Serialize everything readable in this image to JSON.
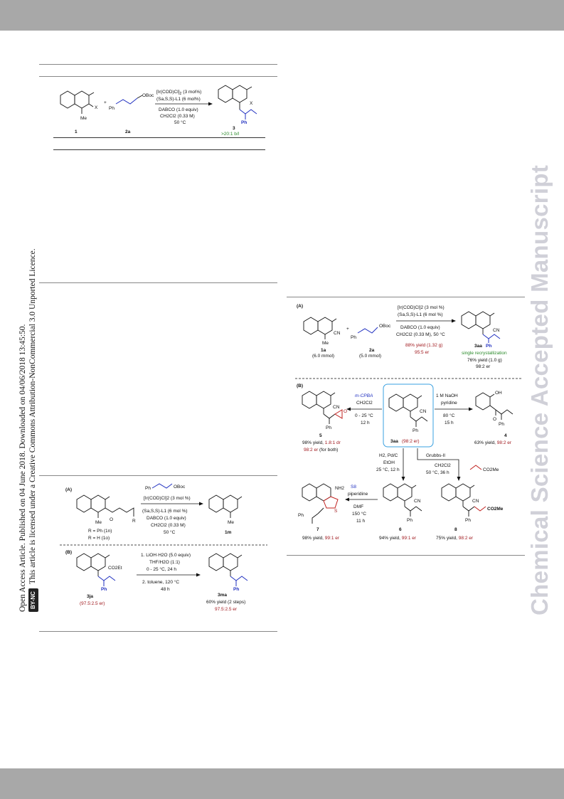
{
  "side_notice": {
    "line1": "Open Access Article. Published on 04 June 2018. Downloaded on 04/06/2018 13:45:50.",
    "cc_badge": "BY-NC",
    "line2": "This article is licensed under a Creative Commons Attribution-NonCommercial 3.0 Unported Licence."
  },
  "watermark": "Chemical Science Accepted Manuscript",
  "table_scheme": {
    "reagent1": "[Ir(COD)Cl]",
    "reagent1_sub": "2",
    "reagent1_tail": "(3 mol%)",
    "reagent2": "(Sa,S,S)-L1 (6 mol%)",
    "reagent3": "DABCO (1.0 equiv)",
    "reagent4": "CH2Cl2 (0.33 M)",
    "reagent5": "50 °C",
    "cmpd1": "1",
    "cmpd2a": "2a",
    "cmpd3": "3",
    "selectivity": ">20:1 b/l",
    "sub_me": "Me",
    "sub_x": "X",
    "sub_x2": "X",
    "sub_ph": "Ph",
    "sub_ph2": "Ph",
    "sub_oboc": "OBoc",
    "plus": "+"
  },
  "scheme_right": {
    "partA": "(A)",
    "partB": "(B)",
    "a_cmpd1a": "1a",
    "a_cmpd1a_amt": "(6.0 mmol)",
    "a_cmpd2a": "2a",
    "a_cmpd2a_amt": "(5.0 mmol)",
    "a_r1": "[Ir(COD)Cl]2 (3 mol %)",
    "a_r2": "(Sa,S,S)-L1 (6 mol %)",
    "a_r3": "DABCO (1.0 equiv)",
    "a_r4": "CH2Cl2 (0.33 M), 50 °C",
    "a_yield": "88% yield (1.32 g)",
    "a_er": "95:5 er",
    "a_product": "3aa",
    "a_recryst": "single recrystallization",
    "a_recryst_yield": "76% yield (1.0 g)",
    "a_recryst_er": "98:2 er",
    "a_me": "Me",
    "a_cn": "CN",
    "a_cn2": "CN",
    "a_ph": "Ph",
    "a_ph2": "Ph",
    "a_oboc": "OBoc",
    "plus": "+",
    "center_label": "3aa",
    "center_er": "(98:2 er)",
    "center_cn": "CN",
    "center_ph": "Ph",
    "mcpba": "m-CPBA",
    "mcpba_solv": "CH2Cl2",
    "mcpba_cond1": "0 - 25 °C",
    "mcpba_cond2": "12 h",
    "p5": "5",
    "p5_yield": "98% yield, ",
    "p5_dr": "1.8:1 dr",
    "p5_er": "98:2 er",
    "p5_er_tail": " (for both)",
    "p5_cn": "CN",
    "p5_o": "O",
    "p5_ph": "Ph",
    "naoh": "1 M NaOH",
    "naoh_solv": "pyridine",
    "naoh_cond1": "80 °C",
    "naoh_cond2": "15 h",
    "p4": "4",
    "p4_yield": "63% yield, ",
    "p4_er": "98:2 er",
    "p4_oh": "OH",
    "p4_o": "O",
    "p4_ph": "Ph",
    "h2": "H2, Pd/C",
    "h2_solv": "EtOH",
    "h2_cond": "25 °C, 12 h",
    "grubbs": "Grubbs-II",
    "grubbs_solv": "CH2Cl2",
    "grubbs_cond": "50 °C, 36 h",
    "acrylate": "CO2Me",
    "s8": "S8",
    "s8_base": "piperidine",
    "s8_solv": "DMF",
    "s8_cond1": "150 °C",
    "s8_cond2": "11 h",
    "p7": "7",
    "p7_yield": "98% yield, ",
    "p7_er": "99:1 er",
    "p7_nh2": "NH2",
    "p7_s": "S",
    "p7_ph": "Ph",
    "p6": "6",
    "p6_yield": "94% yield, ",
    "p6_er": "99:1 er",
    "p6_cn": "CN",
    "p6_ph": "Ph",
    "p8": "8",
    "p8_yield": "75% yield, ",
    "p8_er": "98:2 er",
    "p8_cn": "CN",
    "p8_co2me": "CO2Me",
    "p8_ph": "Ph"
  },
  "scheme_left": {
    "partA": "(A)",
    "partB": "(B)",
    "a_r1": "[Ir(COD)Cl]2 (3 mol %)",
    "a_r2": "(Sa,S,S)-L1 (6 mol %)",
    "a_r3": "DABCO (1.0 equiv)",
    "a_r4": "CH2Cl2 (0.33 M)",
    "a_r5": "50 °C",
    "a_reagent_ph": "Ph",
    "a_reagent_oboc": "OBoc",
    "a_sub1": "R = Ph (1n)",
    "a_sub2": "R = H (1o)",
    "a_me": "Me",
    "a_r": "R",
    "a_o": "O",
    "a_product": "1m",
    "a_product_me": "Me",
    "b_start": "3ja",
    "b_start_er": "(97.5:2.5 er)",
    "b_co2et": "CO2Et",
    "b_ph": "Ph",
    "b_step1": "1. LiOH·H2O (5.0 equiv)",
    "b_step1b": "THF/H2O (1:1)",
    "b_step1c": "0 - 25 °C, 24 h",
    "b_step2": "2. toluene, 120 °C",
    "b_step2b": "48 h",
    "b_product": "3ma",
    "b_product_ph": "Ph",
    "b_yield": "60% yield (2 steps)",
    "b_er": "97.5:2.5 er"
  }
}
